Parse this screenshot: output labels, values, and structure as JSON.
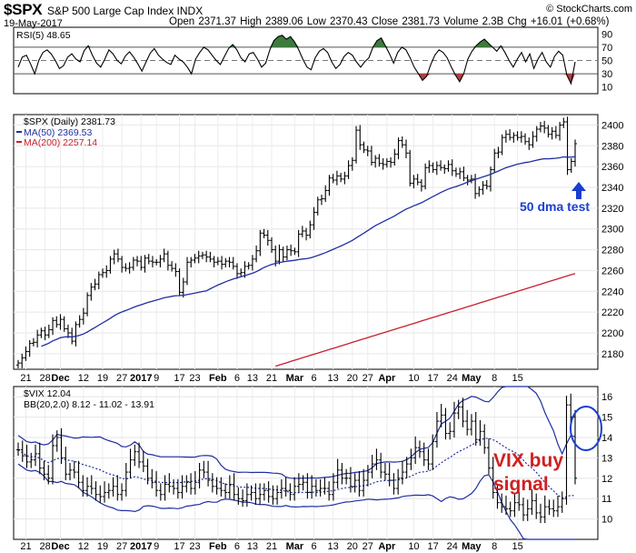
{
  "header": {
    "symbol": "$SPX",
    "subtitle": "S&P 500 Large Cap Index INDX",
    "date": "19-May-2017",
    "ohlc": "Open 2371.37  High 2389.06  Low 2370.43  Close 2381.73  Volume 2.3B  Chg +16.01 (+0.68%)",
    "logo": "© StockCharts.com"
  },
  "rsi_legend": "RSI(5) 48.65",
  "spx_legend": [
    "$SPX (Daily) 2381.73",
    "MA(50) 2369.53",
    "MA(200) 2257.14"
  ],
  "vix_legend": [
    "$VIX 12.04",
    "BB(20,2.0) 8.12 - 11.02 - 13.91"
  ],
  "annotations": {
    "dma": "50 dma test",
    "vix_line1": "VIX buy",
    "vix_line2": "signal"
  },
  "colors": {
    "price": "#000000",
    "ma50": "#1f2fa0",
    "ma200": "#c81e2e",
    "rsi_fill_up": "#3d7a3d",
    "rsi_fill_down": "#b04040",
    "annotation_blue": "#1a3fd0",
    "annotation_red": "#d02020"
  },
  "chart_data": [
    {
      "type": "line",
      "name": "RSI(5)",
      "ylim": [
        0,
        100
      ],
      "yticks": [
        10,
        30,
        50,
        70,
        90
      ],
      "values": [
        40,
        55,
        58,
        45,
        30,
        50,
        62,
        66,
        60,
        50,
        38,
        42,
        55,
        60,
        52,
        48,
        65,
        72,
        58,
        46,
        40,
        52,
        66,
        60,
        50,
        45,
        57,
        63,
        55,
        45,
        34,
        48,
        61,
        68,
        58,
        52,
        47,
        44,
        58,
        52,
        48,
        40,
        30,
        52,
        62,
        70,
        66,
        58,
        50,
        44,
        56,
        68,
        74,
        66,
        54,
        48,
        60,
        62,
        52,
        40,
        46,
        66,
        80,
        86,
        88,
        82,
        86,
        78,
        66,
        52,
        40,
        36,
        54,
        64,
        68,
        62,
        48,
        38,
        44,
        56,
        62,
        58,
        48,
        40,
        48,
        54,
        70,
        80,
        84,
        72,
        60,
        46,
        62,
        70,
        66,
        54,
        40,
        30,
        20,
        26,
        44,
        58,
        66,
        62,
        54,
        40,
        28,
        18,
        30,
        52,
        64,
        72,
        78,
        82,
        76,
        70,
        64,
        72,
        62,
        50,
        40,
        52,
        62,
        48,
        60,
        38,
        52,
        62,
        48,
        40,
        56,
        64,
        58,
        28,
        15,
        48
      ]
    },
    {
      "type": "line",
      "title": "$SPX (Daily)",
      "ylim": [
        2165,
        2410
      ],
      "yticks": [
        2180,
        2200,
        2220,
        2240,
        2260,
        2280,
        2300,
        2320,
        2340,
        2360,
        2380,
        2400
      ],
      "xticks": [
        "21",
        "28",
        "Dec",
        "12",
        "19",
        "27",
        "2017",
        "9",
        "17",
        "23",
        "Feb",
        "6",
        "13",
        "21",
        "Mar",
        "6",
        "13",
        "20",
        "27",
        "Apr",
        "10",
        "17",
        "24",
        "May",
        "8",
        "15"
      ],
      "close": [
        2171,
        2176,
        2182,
        2190,
        2191,
        2198,
        2202,
        2198,
        2203,
        2212,
        2208,
        2213,
        2204,
        2200,
        2192,
        2208,
        2213,
        2219,
        2236,
        2244,
        2247,
        2256,
        2258,
        2260,
        2271,
        2276,
        2271,
        2263,
        2262,
        2263,
        2270,
        2269,
        2263,
        2272,
        2269,
        2268,
        2268,
        2271,
        2276,
        2265,
        2262,
        2259,
        2239,
        2249,
        2268,
        2270,
        2272,
        2274,
        2275,
        2273,
        2271,
        2268,
        2269,
        2266,
        2269,
        2268,
        2264,
        2257,
        2258,
        2264,
        2265,
        2271,
        2279,
        2296,
        2294,
        2289,
        2280,
        2269,
        2280,
        2273,
        2280,
        2279,
        2278,
        2295,
        2298,
        2294,
        2304,
        2316,
        2328,
        2329,
        2337,
        2349,
        2347,
        2351,
        2348,
        2351,
        2361,
        2366,
        2395,
        2381,
        2376,
        2375,
        2364,
        2368,
        2363,
        2362,
        2365,
        2364,
        2372,
        2385,
        2381,
        2373,
        2344,
        2348,
        2345,
        2341,
        2359,
        2361,
        2357,
        2361,
        2359,
        2358,
        2362,
        2356,
        2353,
        2355,
        2349,
        2347,
        2348,
        2334,
        2338,
        2342,
        2341,
        2357,
        2373,
        2374,
        2388,
        2391,
        2388,
        2390,
        2388,
        2389,
        2384,
        2381,
        2389,
        2396,
        2399,
        2397,
        2391,
        2394,
        2390,
        2400,
        2403,
        2357,
        2365,
        2382
      ],
      "series": [
        {
          "name": "MA(50)",
          "value": 2369.53
        },
        {
          "name": "MA(200)",
          "value": 2257.14
        }
      ]
    },
    {
      "type": "line",
      "title": "$VIX",
      "ylim": [
        9,
        16.5
      ],
      "yticks": [
        10,
        11,
        12,
        13,
        14,
        15,
        16
      ],
      "close": [
        13.4,
        13.1,
        12.8,
        12.9,
        13.2,
        12.5,
        12.2,
        12.0,
        13.6,
        14.0,
        13.0,
        12.2,
        12.4,
        12.3,
        11.8,
        11.4,
        11.6,
        11.5,
        11.2,
        11.1,
        11.3,
        11.4,
        11.6,
        11.2,
        11.4,
        12.3,
        12.9,
        13.3,
        12.8,
        12.6,
        12.0,
        11.8,
        11.4,
        11.2,
        11.7,
        11.6,
        11.5,
        11.3,
        11.6,
        11.8,
        11.5,
        11.8,
        12.4,
        12.3,
        11.9,
        11.6,
        11.5,
        11.4,
        11.3,
        11.7,
        11.2,
        11.0,
        10.9,
        11.2,
        11.3,
        11.0,
        11.2,
        11.4,
        11.1,
        11.0,
        11.3,
        11.5,
        11.4,
        11.2,
        11.6,
        11.7,
        11.8,
        11.3,
        11.6,
        11.4,
        11.5,
        11.5,
        11.2,
        11.8,
        12.4,
        12.0,
        12.0,
        11.6,
        11.9,
        11.4,
        11.9,
        12.3,
        12.7,
        12.9,
        12.3,
        12.2,
        11.9,
        11.5,
        12.0,
        12.3,
        12.7,
        13.0,
        13.5,
        13.3,
        12.9,
        12.7,
        13.8,
        14.8,
        15.1,
        14.2,
        14.3,
        15.2,
        15.5,
        14.8,
        14.4,
        14.8,
        13.9,
        14.3,
        13.5,
        12.5,
        11.3,
        10.8,
        10.6,
        10.5,
        10.4,
        10.8,
        10.7,
        10.2,
        10.5,
        10.9,
        10.3,
        10.1,
        10.6,
        10.5,
        10.4,
        10.6,
        11.0,
        15.6,
        15.0,
        12.0
      ]
    }
  ]
}
